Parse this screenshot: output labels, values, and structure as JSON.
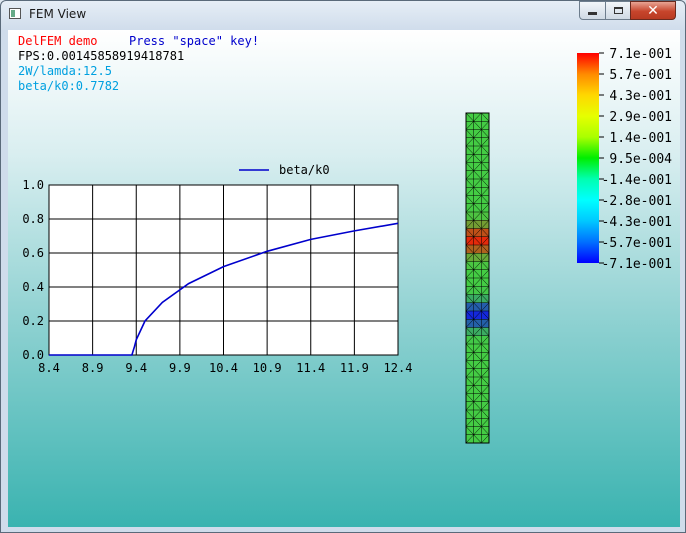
{
  "window": {
    "title": "FEM View"
  },
  "hud": {
    "app_name": "DelFEM demo",
    "prompt": "Press \"space\" key!",
    "fps": "FPS:0.00145858919418781",
    "param1": "2W/lamda:12.5",
    "param2": "beta/k0:0.7782",
    "colors": {
      "app_name": "#ff0000",
      "prompt": "#0000cc",
      "fps": "#000000",
      "params": "#00a0e0"
    }
  },
  "colorbar": {
    "labels": [
      "7.1e-001",
      "5.7e-001",
      "4.3e-001",
      "2.9e-001",
      "1.4e-001",
      "9.5e-004",
      "-1.4e-001",
      "-2.8e-001",
      "-4.3e-001",
      "-5.7e-001",
      "-7.1e-001"
    ],
    "colors": [
      "#ff0000",
      "#ff8a00",
      "#ffd700",
      "#e6ff00",
      "#aaff00",
      "#00ee00",
      "#00ffb0",
      "#00ffff",
      "#00c8ff",
      "#0070ff",
      "#0000ff"
    ]
  },
  "mesh": {
    "base_color": "#44cc44",
    "line_color": "#000000"
  },
  "chart_data": {
    "type": "line",
    "legend": "beta/k0",
    "series": [
      {
        "name": "beta/k0",
        "color": "#0000cc",
        "x": [
          8.4,
          9.35,
          9.38,
          9.4,
          9.5,
          9.7,
          10.0,
          10.4,
          10.9,
          11.4,
          11.9,
          12.4
        ],
        "y": [
          0.0,
          0.0,
          0.05,
          0.09,
          0.2,
          0.31,
          0.42,
          0.52,
          0.61,
          0.68,
          0.73,
          0.775
        ]
      }
    ],
    "xticks": [
      "8.4",
      "8.9",
      "9.4",
      "9.9",
      "10.4",
      "10.9",
      "11.4",
      "11.9",
      "12.4"
    ],
    "yticks": [
      "0.0",
      "0.2",
      "0.4",
      "0.6",
      "0.8",
      "1.0"
    ],
    "xlim": [
      8.4,
      12.4
    ],
    "ylim": [
      0.0,
      1.0
    ],
    "grid": true
  }
}
